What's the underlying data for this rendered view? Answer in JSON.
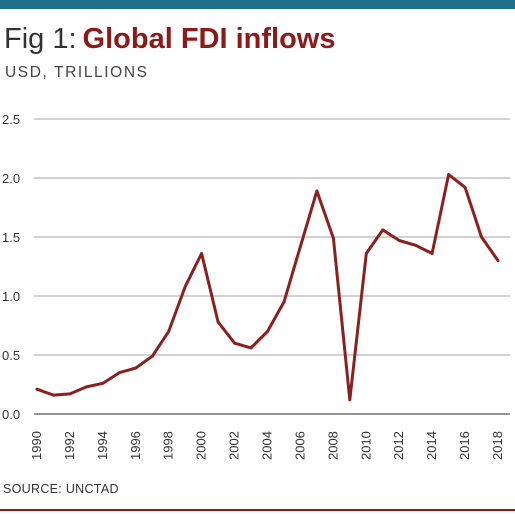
{
  "header": {
    "fig_label": "Fig 1:",
    "title": "Global FDI inflows",
    "subtitle": "USD, TRILLIONS"
  },
  "footer": {
    "source": "SOURCE: UNCTAD"
  },
  "colors": {
    "accent_bar": "#1f6f8b",
    "title": "#8b1a1a",
    "series_line": "#8b2020",
    "gridline": "#888888"
  },
  "chart_data": {
    "type": "line",
    "title": "Global FDI inflows",
    "ylabel": "USD, TRILLIONS",
    "xlabel": "",
    "ylim": [
      0,
      2.5
    ],
    "yticks": [
      "0.0",
      "0.5",
      "1.0",
      "1.5",
      "2.0",
      "2.5"
    ],
    "xticks": [
      "1990",
      "1992",
      "1994",
      "1996",
      "1998",
      "2000",
      "2002",
      "2004",
      "2006",
      "2008",
      "2010",
      "2012",
      "2014",
      "2016",
      "2018"
    ],
    "grid": "horizontal",
    "x": [
      1990,
      1991,
      1992,
      1993,
      1994,
      1995,
      1996,
      1997,
      1998,
      1999,
      2000,
      2001,
      2002,
      2003,
      2004,
      2005,
      2006,
      2007,
      2008,
      2009,
      2010,
      2011,
      2012,
      2013,
      2014,
      2015,
      2016,
      2017,
      2018
    ],
    "series": [
      {
        "values": [
          0.21,
          0.16,
          0.17,
          0.23,
          0.26,
          0.35,
          0.39,
          0.49,
          0.7,
          1.08,
          1.36,
          0.78,
          0.6,
          0.56,
          0.7,
          0.95,
          1.42,
          1.89,
          1.49,
          0.12,
          1.36,
          1.56,
          1.47,
          1.43,
          1.36,
          2.03,
          1.92,
          1.5,
          1.3
        ]
      }
    ]
  }
}
